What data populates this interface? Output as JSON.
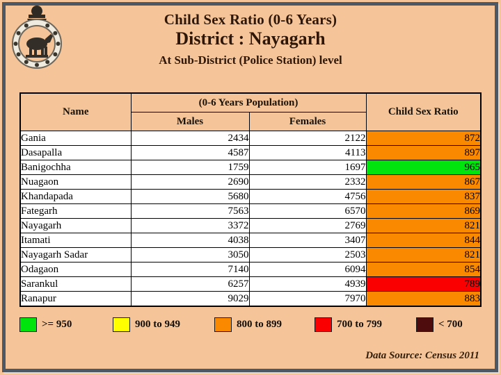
{
  "header": {
    "title": "Child Sex Ratio (0-6 Years)",
    "district": "District : Nayagarh",
    "level": "At Sub-District (Police Station) level"
  },
  "table": {
    "headers": {
      "name": "Name",
      "population": "(0-6 Years Population)",
      "males": "Males",
      "females": "Females",
      "child_sex_ratio": "Child Sex Ratio"
    },
    "rows": [
      {
        "name": "Gania",
        "males": "2434",
        "females": "2122",
        "csr": "872",
        "band": "orange_800_899"
      },
      {
        "name": "Dasapalla",
        "males": "4587",
        "females": "4113",
        "csr": "897",
        "band": "orange_800_899"
      },
      {
        "name": "Banigochha",
        "males": "1759",
        "females": "1697",
        "csr": "965",
        "band": "green_950_plus"
      },
      {
        "name": "Nuagaon",
        "males": "2690",
        "females": "2332",
        "csr": "867",
        "band": "orange_800_899"
      },
      {
        "name": "Khandapada",
        "males": "5680",
        "females": "4756",
        "csr": "837",
        "band": "orange_800_899"
      },
      {
        "name": "Fategarh",
        "males": "7563",
        "females": "6570",
        "csr": "869",
        "band": "orange_800_899"
      },
      {
        "name": "Nayagarh",
        "males": "3372",
        "females": "2769",
        "csr": "821",
        "band": "orange_800_899"
      },
      {
        "name": "Itamati",
        "males": "4038",
        "females": "3407",
        "csr": "844",
        "band": "orange_800_899"
      },
      {
        "name": "Nayagarh Sadar",
        "males": "3050",
        "females": "2503",
        "csr": "821",
        "band": "orange_800_899"
      },
      {
        "name": "Odagaon",
        "males": "7140",
        "females": "6094",
        "csr": "854",
        "band": "orange_800_899"
      },
      {
        "name": "Sarankul",
        "males": "6257",
        "females": "4939",
        "csr": "789",
        "band": "red_700_799"
      },
      {
        "name": "Ranapur",
        "males": "9029",
        "females": "7970",
        "csr": "883",
        "band": "orange_800_899"
      }
    ]
  },
  "legend": [
    {
      "label": ">= 950",
      "color": "#00E40E"
    },
    {
      "label": "900 to 949",
      "color": "#FFFF00"
    },
    {
      "label": "800 to 899",
      "color": "#FB8900"
    },
    {
      "label": "700 to 799",
      "color": "#FB0000"
    },
    {
      "label": "< 700",
      "color": "#4E0C0C"
    }
  ],
  "footer": {
    "data_source": "Data Source: Census 2011"
  },
  "colors": {
    "slide_background": "#F5C498",
    "frame_border": "#4C5865",
    "band_colors": {
      "green_950_plus": "#00E40E",
      "yellow_900_949": "#FFFF00",
      "orange_800_899": "#FB8900",
      "red_700_799": "#FB0000",
      "maroon_below_700": "#4E0C0C"
    }
  }
}
